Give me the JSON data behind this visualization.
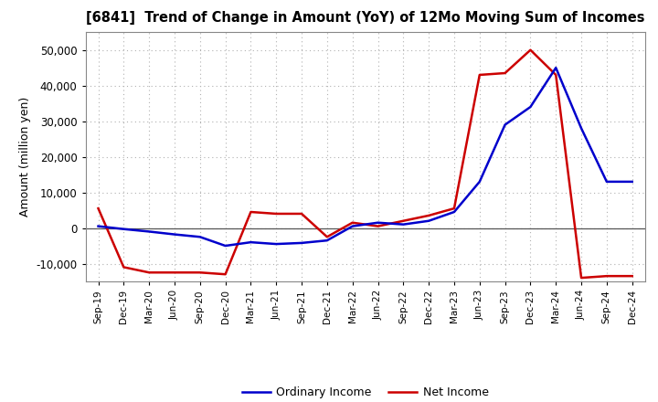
{
  "title": "[6841]  Trend of Change in Amount (YoY) of 12Mo Moving Sum of Incomes",
  "ylabel": "Amount (million yen)",
  "x_labels": [
    "Sep-19",
    "Dec-19",
    "Mar-20",
    "Jun-20",
    "Sep-20",
    "Dec-20",
    "Mar-21",
    "Jun-21",
    "Sep-21",
    "Dec-21",
    "Mar-22",
    "Jun-22",
    "Sep-22",
    "Dec-22",
    "Mar-23",
    "Jun-23",
    "Sep-23",
    "Dec-23",
    "Mar-24",
    "Jun-24",
    "Sep-24",
    "Dec-24"
  ],
  "ordinary_income": [
    500,
    -300,
    -1000,
    -1800,
    -2500,
    -5000,
    -4000,
    -4500,
    -4200,
    -3500,
    500,
    1500,
    1000,
    2000,
    4500,
    13000,
    29000,
    34000,
    45000,
    28000,
    13000,
    13000
  ],
  "net_income": [
    5500,
    -11000,
    -12500,
    -12500,
    -12500,
    -13000,
    4500,
    4000,
    4000,
    -2500,
    1500,
    500,
    2000,
    3500,
    5500,
    43000,
    43500,
    50000,
    43000,
    -14000,
    -13500,
    -13500
  ],
  "ordinary_color": "#0000cc",
  "net_color": "#cc0000",
  "background_color": "#ffffff",
  "grid_color": "#b0b0b0",
  "ylim": [
    -15000,
    55000
  ],
  "yticks": [
    -10000,
    0,
    10000,
    20000,
    30000,
    40000,
    50000
  ],
  "legend_ordinary": "Ordinary Income",
  "legend_net": "Net Income"
}
